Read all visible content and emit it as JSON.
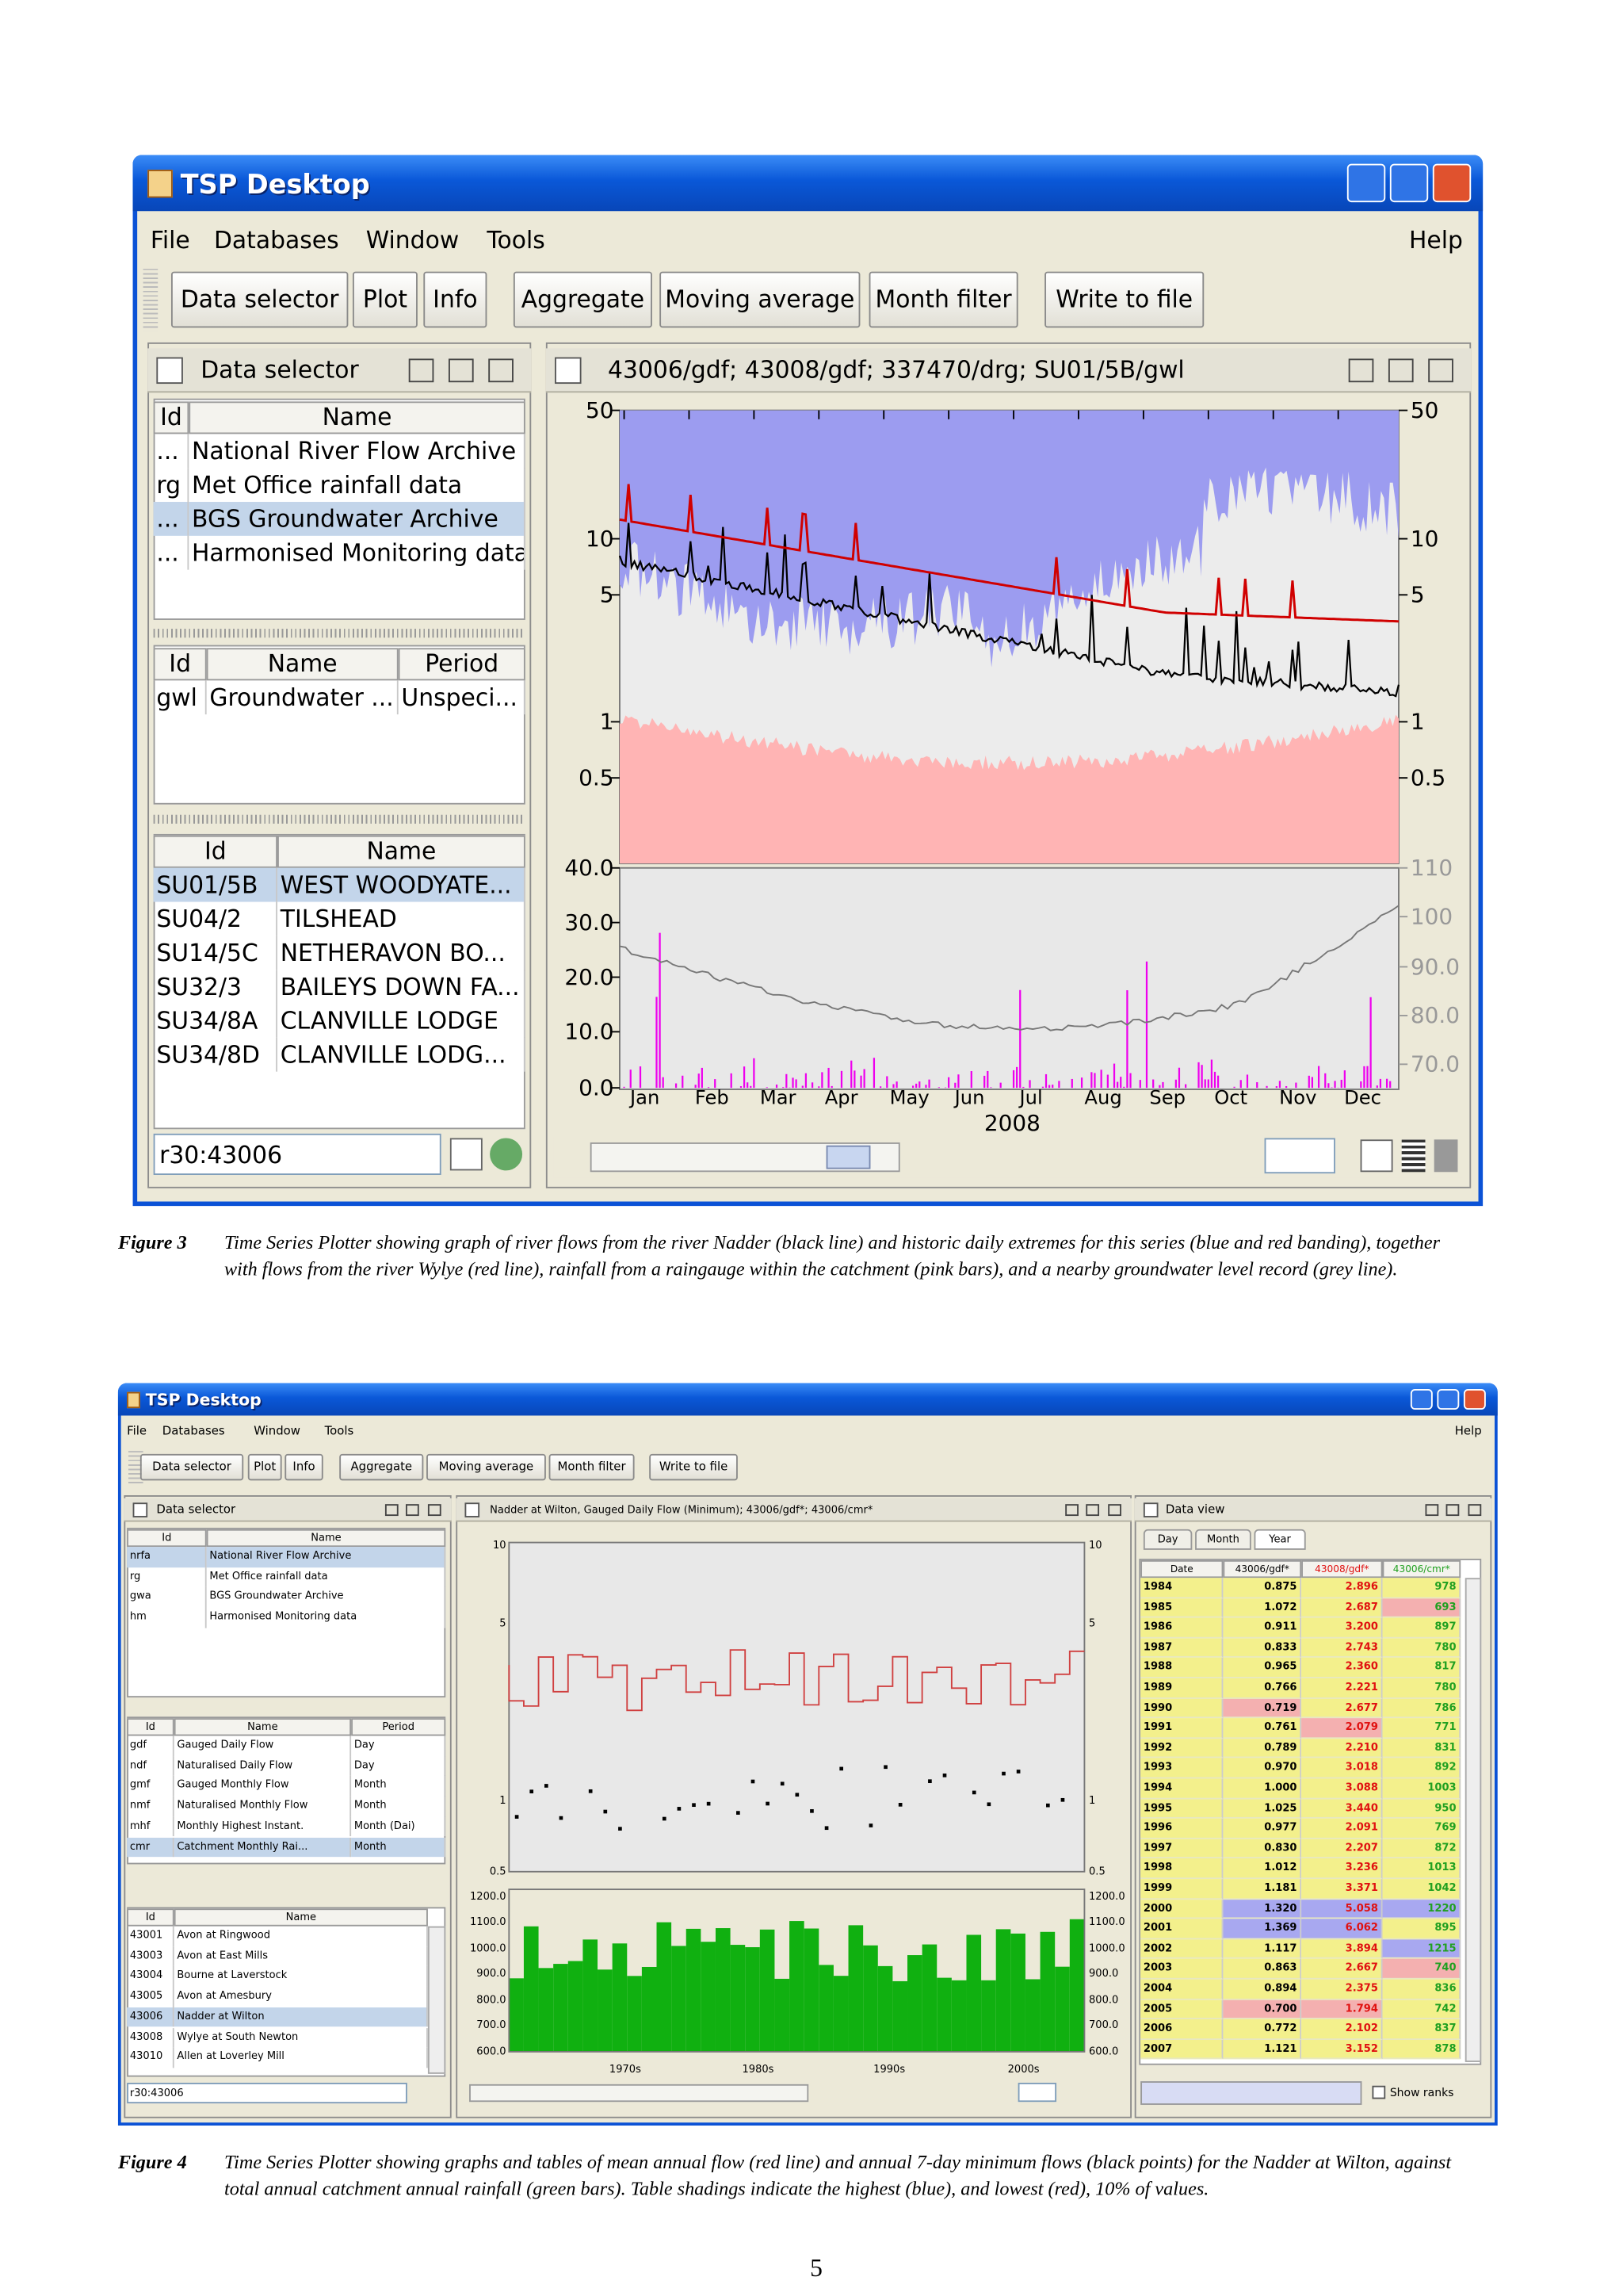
{
  "figure3": {
    "window_title": "TSP Desktop",
    "menu": [
      "File",
      "Databases",
      "Window",
      "Tools"
    ],
    "help": "Help",
    "toolbar": [
      "Data selector",
      "Plot",
      "Info",
      "Aggregate",
      "Moving average",
      "Month filter",
      "Write to file"
    ],
    "selector": {
      "title": "Data selector",
      "table1": {
        "header": [
          "Id",
          "Name"
        ],
        "rows": [
          [
            "...",
            "National River Flow Archive"
          ],
          [
            "rg",
            "Met Office rainfall data"
          ],
          [
            "...",
            "BGS Groundwater Archive"
          ],
          [
            "...",
            "Harmonised Monitoring data"
          ]
        ]
      },
      "table2": {
        "header": [
          "Id",
          "Name",
          "Period"
        ],
        "rows": [
          [
            "gwl",
            "Groundwater ...",
            "Unspeci..."
          ]
        ]
      },
      "table3": {
        "header": [
          "Id",
          "Name"
        ],
        "rows": [
          [
            "SU01/5B",
            "WEST WOODYATE..."
          ],
          [
            "SU04/2",
            "TILSHEAD"
          ],
          [
            "SU14/5C",
            "NETHERAVON BO..."
          ],
          [
            "SU32/3",
            "BAILEYS DOWN FA..."
          ],
          [
            "SU34/8A",
            "CLANVILLE LODGE"
          ],
          [
            "SU34/8D",
            "CLANVILLE LODG..."
          ]
        ]
      },
      "input": "r30:43006"
    },
    "plot": {
      "title": "43006/gdf; 43008/gdf; 337470/drg; SU01/5B/gwl",
      "upper_ticks": [
        "50",
        "10",
        "5",
        "1",
        "0.5"
      ],
      "lower_left_ticks": [
        "40.0",
        "30.0",
        "20.0",
        "10.0",
        "0.0"
      ],
      "lower_right_ticks": [
        "110",
        "100",
        "90.0",
        "80.0",
        "70.0"
      ],
      "months": [
        "Jan",
        "Feb",
        "Mar",
        "Apr",
        "May",
        "Jun",
        "Jul",
        "Aug",
        "Sep",
        "Oct",
        "Nov",
        "Dec"
      ],
      "year": "2008"
    },
    "caption_label": "Figure 3",
    "caption": "Time Series Plotter showing graph of river flows from the river Nadder (black line) and historic daily extremes for this series (blue and red banding), together with flows from the river Wylye (red line), rainfall from a raingauge within the catchment (pink bars), and a nearby groundwater level record (grey line)."
  },
  "figure4": {
    "window_title": "TSP Desktop",
    "menu": [
      "File",
      "Databases",
      "Window",
      "Tools"
    ],
    "help": "Help",
    "toolbar": [
      "Data selector",
      "Plot",
      "Info",
      "Aggregate",
      "Moving average",
      "Month filter",
      "Write to file"
    ],
    "selector": {
      "title": "Data selector",
      "table1": {
        "header": [
          "Id",
          "Name"
        ],
        "rows": [
          [
            "nrfa",
            "National River Flow Archive"
          ],
          [
            "rg",
            "Met Office rainfall data"
          ],
          [
            "gwa",
            "BGS Groundwater Archive"
          ],
          [
            "hm",
            "Harmonised Monitoring data"
          ]
        ]
      },
      "table2": {
        "header": [
          "Id",
          "Name",
          "Period"
        ],
        "rows": [
          [
            "gdf",
            "Gauged Daily Flow",
            "Day"
          ],
          [
            "ndf",
            "Naturalised Daily Flow",
            "Day"
          ],
          [
            "gmf",
            "Gauged Monthly Flow",
            "Month"
          ],
          [
            "nmf",
            "Naturalised Monthly Flow",
            "Month"
          ],
          [
            "mhf",
            "Monthly Highest Instant.",
            "Month (Dai)"
          ],
          [
            "cmr",
            "Catchment Monthly Rai...",
            "Month"
          ]
        ]
      },
      "table3": {
        "header": [
          "Id",
          "Name"
        ],
        "rows": [
          [
            "43001",
            "Avon at Ringwood"
          ],
          [
            "43003",
            "Avon at East Mills"
          ],
          [
            "43004",
            "Bourne at Laverstock"
          ],
          [
            "43005",
            "Avon at Amesbury"
          ],
          [
            "43006",
            "Nadder at Wilton"
          ],
          [
            "43008",
            "Wylye at South Newton"
          ],
          [
            "43010",
            "Allen at Loverley Mill"
          ]
        ]
      },
      "input": "r30:43006"
    },
    "plot": {
      "title": "Nadder at Wilton, Gauged Daily Flow (Minimum); 43006/gdf*; 43006/cmr*",
      "upper_ticks": [
        "10",
        "5",
        "1",
        "0.5"
      ],
      "lower_ticks": [
        "1200.0",
        "1100.0",
        "1000.0",
        "900.0",
        "800.0",
        "700.0",
        "600.0"
      ],
      "decades": [
        "1970s",
        "1980s",
        "1990s",
        "2000s"
      ]
    },
    "data_view": {
      "title": "Data view",
      "tabs": [
        "Day",
        "Month",
        "Year"
      ],
      "header": [
        "Date",
        "43006/gdf*",
        "43008/gdf*",
        "43006/cmr*"
      ],
      "rows": [
        [
          "1984",
          "0.875",
          "2.896",
          "978"
        ],
        [
          "1985",
          "1.072",
          "2.687",
          "693"
        ],
        [
          "1986",
          "0.911",
          "3.200",
          "897"
        ],
        [
          "1987",
          "0.833",
          "2.743",
          "780"
        ],
        [
          "1988",
          "0.965",
          "2.360",
          "817"
        ],
        [
          "1989",
          "0.766",
          "2.221",
          "780"
        ],
        [
          "1990",
          "0.719",
          "2.677",
          "786"
        ],
        [
          "1991",
          "0.761",
          "2.079",
          "771"
        ],
        [
          "1992",
          "0.789",
          "2.210",
          "831"
        ],
        [
          "1993",
          "0.970",
          "3.018",
          "892"
        ],
        [
          "1994",
          "1.000",
          "3.088",
          "1003"
        ],
        [
          "1995",
          "1.025",
          "3.440",
          "950"
        ],
        [
          "1996",
          "0.977",
          "2.091",
          "769"
        ],
        [
          "1997",
          "0.830",
          "2.207",
          "872"
        ],
        [
          "1998",
          "1.012",
          "3.236",
          "1013"
        ],
        [
          "1999",
          "1.181",
          "3.371",
          "1042"
        ],
        [
          "2000",
          "1.320",
          "5.058",
          "1220"
        ],
        [
          "2001",
          "1.369",
          "6.062",
          "895"
        ],
        [
          "2002",
          "1.117",
          "3.894",
          "1215"
        ],
        [
          "2003",
          "0.863",
          "2.667",
          "740"
        ],
        [
          "2004",
          "0.894",
          "2.375",
          "836"
        ],
        [
          "2005",
          "0.700",
          "1.794",
          "742"
        ],
        [
          "2006",
          "0.772",
          "2.102",
          "837"
        ],
        [
          "2007",
          "1.121",
          "3.152",
          "878"
        ]
      ],
      "show_ranks": "Show ranks"
    },
    "caption_label": "Figure 4",
    "caption": "Time Series Plotter showing graphs and tables of mean annual flow (red line) and annual 7-day minimum flows (black points) for the Nadder at Wilton, against total annual catchment annual rainfall (green bars). Table shadings indicate the highest (blue), and lowest (red), 10% of values."
  },
  "page_number": "5"
}
